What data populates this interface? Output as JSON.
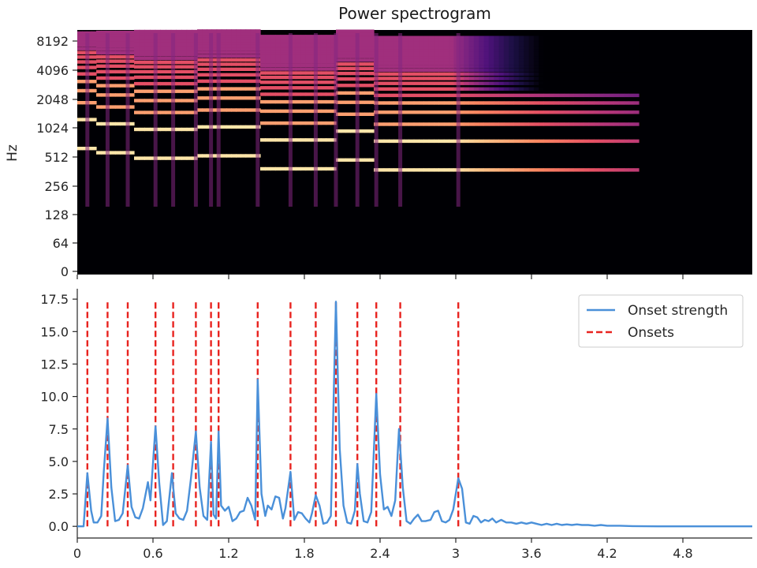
{
  "chart_data": [
    {
      "type": "heatmap",
      "title": "Power spectrogram",
      "xlabel": "",
      "ylabel": "Hz",
      "y_scale": "log2",
      "y_ticks": [
        "0",
        "64",
        "128",
        "256",
        "512",
        "1024",
        "2048",
        "4096",
        "8192"
      ],
      "colormap": "magma",
      "x_range_s": [
        0,
        5.35
      ],
      "harmonic_ridges_hz": [
        {
          "t_start": 0.0,
          "t_end": 0.15,
          "f0": 620
        },
        {
          "t_start": 0.15,
          "t_end": 0.45,
          "f0": 560
        },
        {
          "t_start": 0.45,
          "t_end": 0.95,
          "f0": 490
        },
        {
          "t_start": 0.95,
          "t_end": 1.45,
          "f0": 520
        },
        {
          "t_start": 1.45,
          "t_end": 2.05,
          "f0": 380
        },
        {
          "t_start": 2.05,
          "t_end": 2.35,
          "f0": 470
        },
        {
          "t_start": 2.35,
          "t_end": 4.45,
          "f0": 370
        }
      ]
    },
    {
      "type": "line",
      "xlabel": "",
      "ylabel": "",
      "xlim": [
        0,
        5.35
      ],
      "ylim": [
        -0.9,
        18.3
      ],
      "x_ticks": [
        "0",
        "0.6",
        "1.2",
        "1.8",
        "2.4",
        "3",
        "3.6",
        "4.2",
        "4.8"
      ],
      "y_ticks": [
        "0.0",
        "2.5",
        "5.0",
        "7.5",
        "10.0",
        "12.5",
        "15.0",
        "17.5"
      ],
      "legend_position": "upper right",
      "series": [
        {
          "name": "Onset strength",
          "style": "solid",
          "color": "#4a90d9",
          "points": [
            [
              0.0,
              0.0
            ],
            [
              0.05,
              0.0
            ],
            [
              0.08,
              4.1
            ],
            [
              0.11,
              1.2
            ],
            [
              0.13,
              0.3
            ],
            [
              0.16,
              0.3
            ],
            [
              0.19,
              0.8
            ],
            [
              0.21,
              4.2
            ],
            [
              0.24,
              8.3
            ],
            [
              0.27,
              3.0
            ],
            [
              0.3,
              0.4
            ],
            [
              0.33,
              0.5
            ],
            [
              0.36,
              1.0
            ],
            [
              0.4,
              4.7
            ],
            [
              0.43,
              1.5
            ],
            [
              0.46,
              0.7
            ],
            [
              0.49,
              0.6
            ],
            [
              0.52,
              1.4
            ],
            [
              0.56,
              3.4
            ],
            [
              0.58,
              2.0
            ],
            [
              0.62,
              7.7
            ],
            [
              0.65,
              3.3
            ],
            [
              0.68,
              0.1
            ],
            [
              0.71,
              0.4
            ],
            [
              0.75,
              4.1
            ],
            [
              0.78,
              1.0
            ],
            [
              0.81,
              0.6
            ],
            [
              0.84,
              0.5
            ],
            [
              0.87,
              1.2
            ],
            [
              0.9,
              3.6
            ],
            [
              0.94,
              7.3
            ],
            [
              0.97,
              3.0
            ],
            [
              1.0,
              0.8
            ],
            [
              1.03,
              0.5
            ],
            [
              1.06,
              6.5
            ],
            [
              1.08,
              0.9
            ],
            [
              1.1,
              0.6
            ],
            [
              1.12,
              7.3
            ],
            [
              1.14,
              1.6
            ],
            [
              1.17,
              1.2
            ],
            [
              1.2,
              1.5
            ],
            [
              1.23,
              0.4
            ],
            [
              1.26,
              0.6
            ],
            [
              1.29,
              1.1
            ],
            [
              1.32,
              1.2
            ],
            [
              1.35,
              2.2
            ],
            [
              1.38,
              1.6
            ],
            [
              1.41,
              0.5
            ],
            [
              1.43,
              11.3
            ],
            [
              1.46,
              2.5
            ],
            [
              1.49,
              0.8
            ],
            [
              1.51,
              1.6
            ],
            [
              1.54,
              1.3
            ],
            [
              1.57,
              2.3
            ],
            [
              1.6,
              2.2
            ],
            [
              1.63,
              0.6
            ],
            [
              1.65,
              1.4
            ],
            [
              1.69,
              4.2
            ],
            [
              1.72,
              0.5
            ],
            [
              1.75,
              1.1
            ],
            [
              1.78,
              1.0
            ],
            [
              1.81,
              0.6
            ],
            [
              1.84,
              0.3
            ],
            [
              1.86,
              1.0
            ],
            [
              1.89,
              2.4
            ],
            [
              1.92,
              1.6
            ],
            [
              1.95,
              0.2
            ],
            [
              1.98,
              0.3
            ],
            [
              2.01,
              0.8
            ],
            [
              2.05,
              17.3
            ],
            [
              2.08,
              6.0
            ],
            [
              2.11,
              1.6
            ],
            [
              2.14,
              0.3
            ],
            [
              2.17,
              0.2
            ],
            [
              2.2,
              1.2
            ],
            [
              2.22,
              4.8
            ],
            [
              2.24,
              2.5
            ],
            [
              2.27,
              0.4
            ],
            [
              2.3,
              0.3
            ],
            [
              2.33,
              1.1
            ],
            [
              2.37,
              10.2
            ],
            [
              2.4,
              4.0
            ],
            [
              2.43,
              1.3
            ],
            [
              2.46,
              1.5
            ],
            [
              2.49,
              0.8
            ],
            [
              2.52,
              2.0
            ],
            [
              2.55,
              7.5
            ],
            [
              2.58,
              3.0
            ],
            [
              2.61,
              0.4
            ],
            [
              2.64,
              0.2
            ],
            [
              2.67,
              0.6
            ],
            [
              2.7,
              0.9
            ],
            [
              2.73,
              0.4
            ],
            [
              2.76,
              0.4
            ],
            [
              2.8,
              0.5
            ],
            [
              2.83,
              1.1
            ],
            [
              2.86,
              1.2
            ],
            [
              2.89,
              0.4
            ],
            [
              2.92,
              0.3
            ],
            [
              2.95,
              0.5
            ],
            [
              2.98,
              1.3
            ],
            [
              3.02,
              3.7
            ],
            [
              3.05,
              2.9
            ],
            [
              3.08,
              0.3
            ],
            [
              3.11,
              0.2
            ],
            [
              3.14,
              0.8
            ],
            [
              3.17,
              0.7
            ],
            [
              3.2,
              0.3
            ],
            [
              3.23,
              0.5
            ],
            [
              3.26,
              0.4
            ],
            [
              3.29,
              0.6
            ],
            [
              3.32,
              0.3
            ],
            [
              3.36,
              0.5
            ],
            [
              3.4,
              0.3
            ],
            [
              3.44,
              0.3
            ],
            [
              3.48,
              0.2
            ],
            [
              3.52,
              0.3
            ],
            [
              3.56,
              0.2
            ],
            [
              3.6,
              0.3
            ],
            [
              3.64,
              0.2
            ],
            [
              3.68,
              0.1
            ],
            [
              3.72,
              0.2
            ],
            [
              3.76,
              0.1
            ],
            [
              3.8,
              0.2
            ],
            [
              3.84,
              0.1
            ],
            [
              3.88,
              0.15
            ],
            [
              3.92,
              0.1
            ],
            [
              3.96,
              0.15
            ],
            [
              4.0,
              0.1
            ],
            [
              4.05,
              0.1
            ],
            [
              4.1,
              0.05
            ],
            [
              4.15,
              0.1
            ],
            [
              4.2,
              0.05
            ],
            [
              4.3,
              0.05
            ],
            [
              4.4,
              0.02
            ],
            [
              4.6,
              0.0
            ],
            [
              5.35,
              0.0
            ]
          ]
        },
        {
          "name": "Onsets",
          "style": "dashed",
          "color": "#e8231f",
          "x_positions": [
            0.08,
            0.24,
            0.4,
            0.62,
            0.76,
            0.94,
            1.06,
            1.12,
            1.43,
            1.69,
            1.89,
            2.05,
            2.22,
            2.37,
            2.56,
            3.02
          ],
          "ymax": 17.3
        }
      ]
    }
  ]
}
